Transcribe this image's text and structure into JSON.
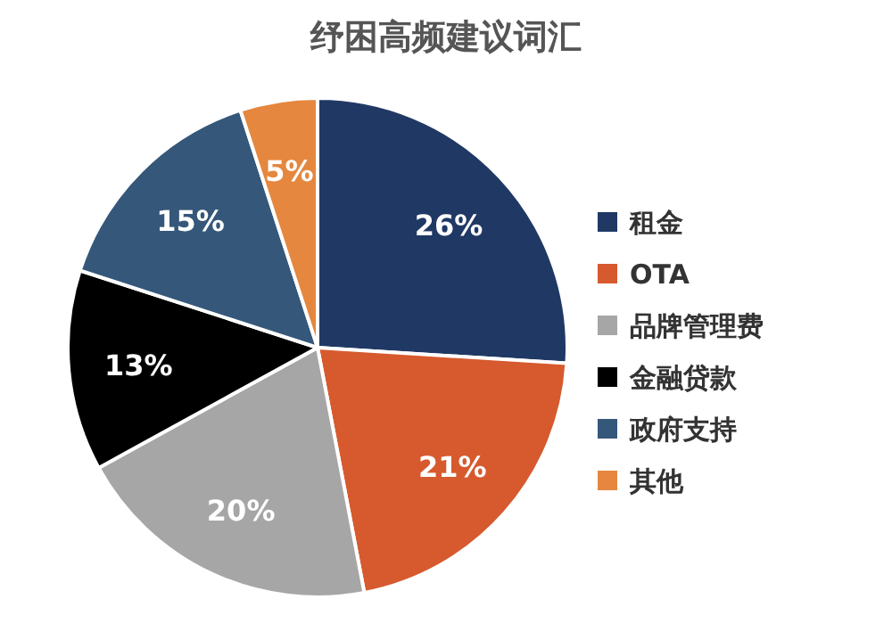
{
  "chart_data": {
    "type": "pie",
    "title": "纾困高频建议词汇",
    "categories": [
      "租金",
      "OTA",
      "品牌管理费",
      "金融贷款",
      "政府支持",
      "其他"
    ],
    "values": [
      26,
      21,
      20,
      13,
      15,
      5
    ],
    "colors": [
      "#203864",
      "#d65a2e",
      "#a6a6a6",
      "#000000",
      "#35577a",
      "#e5873f"
    ],
    "value_labels": [
      "26%",
      "21%",
      "20%",
      "13%",
      "15%",
      "5%"
    ],
    "legend": "right"
  }
}
